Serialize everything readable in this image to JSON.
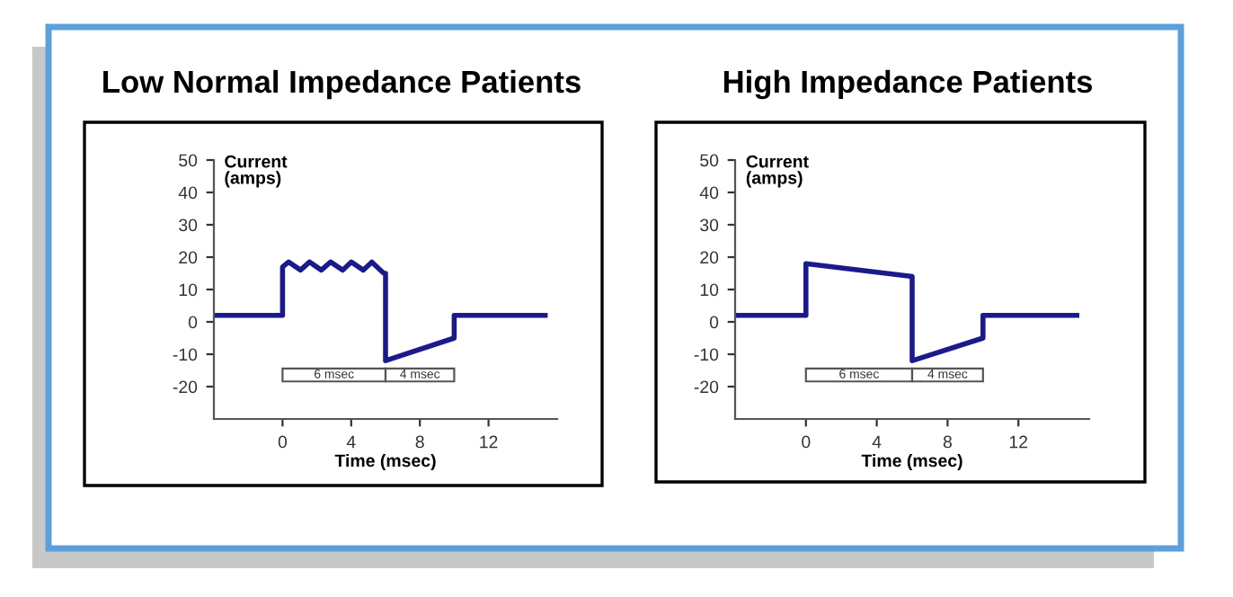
{
  "chart_data": [
    {
      "type": "line",
      "title": "Low Normal Impedance Patients",
      "xlabel": "Time (msec)",
      "ylabel": "Current\n(amps)",
      "series": [
        {
          "color": "#1a1a8c",
          "x": [
            -4,
            0,
            0,
            0.35,
            1.05,
            1.57,
            2.26,
            2.8,
            3.5,
            4,
            4.7,
            5.2,
            5.9,
            6,
            6,
            10,
            10,
            15.3
          ],
          "values": [
            2,
            2,
            17,
            18.5,
            16,
            18.5,
            16,
            18.5,
            16,
            18.5,
            16,
            18.5,
            15,
            15,
            -12,
            -5,
            2,
            2
          ]
        }
      ],
      "xlim": [
        -4,
        16
      ],
      "ylim": [
        -30,
        50
      ],
      "xticks": [
        0,
        4,
        8,
        12
      ],
      "yticks": [
        -20,
        -10,
        0,
        10,
        20,
        30,
        40,
        50
      ],
      "bands": [
        {
          "axis": "x",
          "from": 0,
          "to": 6,
          "label": "6 msec"
        },
        {
          "axis": "x",
          "from": 6,
          "to": 10,
          "label": "4 msec"
        }
      ],
      "grid": false,
      "legend": false
    },
    {
      "type": "line",
      "title": "High Impedance Patients",
      "xlabel": "Time (msec)",
      "ylabel": "Current\n(amps)",
      "series": [
        {
          "color": "#1a1a8c",
          "x": [
            -4,
            0,
            0,
            6,
            6,
            10,
            10,
            15.3
          ],
          "values": [
            2,
            2,
            18,
            14,
            -12,
            -5,
            2,
            2
          ]
        }
      ],
      "xlim": [
        -4,
        16
      ],
      "ylim": [
        -30,
        50
      ],
      "xticks": [
        0,
        4,
        8,
        12
      ],
      "yticks": [
        -20,
        -10,
        0,
        10,
        20,
        30,
        40,
        50
      ],
      "bands": [
        {
          "axis": "x",
          "from": 0,
          "to": 6,
          "label": "6 msec"
        },
        {
          "axis": "x",
          "from": 6,
          "to": 10,
          "label": "4 msec"
        }
      ],
      "grid": false,
      "legend": false
    }
  ]
}
